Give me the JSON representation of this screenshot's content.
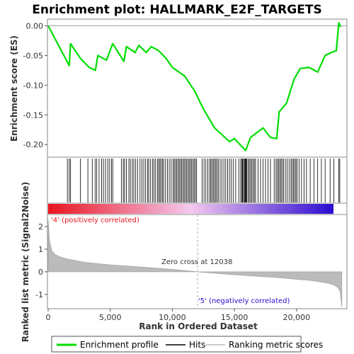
{
  "chart_data": {
    "type": "line",
    "title": "Enrichment plot: HALLMARK_E2F_TARGETS",
    "xlabel": "Rank in Ordered Dataset",
    "xlim": [
      0,
      24000
    ],
    "x_ticks": [
      0,
      5000,
      10000,
      15000,
      20000
    ],
    "x_tick_labels": [
      "0",
      "5,000",
      "10,000",
      "15,000",
      "20,000"
    ],
    "top_panel": {
      "ylabel": "Enrichment score (ES)",
      "ylim": [
        -0.22,
        0.01
      ],
      "y_ticks": [
        0.0,
        -0.05,
        -0.1,
        -0.15,
        -0.2
      ],
      "y_tick_labels": [
        "0.00",
        "-0.05",
        "-0.10",
        "-0.15",
        "-0.20"
      ],
      "grid": false,
      "series": [
        {
          "name": "Enrichment profile",
          "color": "#00dd00",
          "x": [
            0,
            1700,
            1800,
            2600,
            3300,
            3800,
            4000,
            4700,
            5200,
            6100,
            6300,
            7000,
            7300,
            7900,
            8300,
            8900,
            9500,
            10000,
            11000,
            11800,
            12500,
            13400,
            14600,
            15000,
            15900,
            16300,
            16800,
            17300,
            17900,
            18400,
            18600,
            19200,
            19800,
            20300,
            21000,
            21700,
            22300,
            22800,
            23200,
            23400,
            23550
          ],
          "values": [
            0.0,
            -0.067,
            -0.03,
            -0.055,
            -0.07,
            -0.075,
            -0.05,
            -0.058,
            -0.03,
            -0.06,
            -0.035,
            -0.045,
            -0.033,
            -0.045,
            -0.035,
            -0.042,
            -0.055,
            -0.07,
            -0.085,
            -0.11,
            -0.14,
            -0.172,
            -0.195,
            -0.19,
            -0.21,
            -0.188,
            -0.18,
            -0.172,
            -0.188,
            -0.19,
            -0.145,
            -0.13,
            -0.09,
            -0.072,
            -0.07,
            -0.078,
            -0.05,
            -0.045,
            -0.042,
            0.005,
            -0.002
          ]
        }
      ]
    },
    "hits_panel": {
      "series_name": "Hits",
      "hit_ranks": [
        1550,
        1700,
        1800,
        2600,
        3200,
        3550,
        3780,
        3900,
        4100,
        4300,
        4450,
        4620,
        4800,
        4950,
        5100,
        5200,
        5900,
        6050,
        6150,
        6300,
        6500,
        6620,
        6780,
        6900,
        7050,
        7200,
        7400,
        7550,
        7700,
        7850,
        8000,
        8100,
        8250,
        8400,
        8520,
        8650,
        8800,
        8900,
        9000,
        9100,
        9200,
        9300,
        9450,
        9600,
        9750,
        9900,
        10050,
        10150,
        10250,
        10350,
        10450,
        10550,
        10650,
        10750,
        10850,
        10950,
        11050,
        11150,
        11250,
        11350,
        11450,
        11550,
        11650,
        11750,
        11850,
        11950,
        12400,
        12550,
        12700,
        12850,
        13000,
        13100,
        13200,
        13300,
        13400,
        13500,
        13600,
        13700,
        13850,
        14000,
        14150,
        14300,
        14450,
        14600,
        14750,
        14900,
        15100,
        15350,
        15500,
        15600,
        15650,
        15700,
        15800,
        15850,
        15900,
        15950,
        16000,
        16100,
        16200,
        16300,
        16400,
        16500,
        16600,
        16700,
        16900,
        17100,
        17300,
        17500,
        17700,
        17900,
        18200,
        18350,
        18450,
        18550,
        18650,
        18750,
        18850,
        18950,
        19100,
        19250,
        19400,
        19550,
        19650,
        19750,
        19850,
        19950,
        20050,
        20200,
        20400,
        20600,
        20800,
        21100,
        21400,
        21700,
        22000,
        22300,
        22700,
        23000,
        23400,
        23480
      ]
    },
    "ranking_gradient": {
      "start_color": "#e8141e",
      "middle_color": "#f5c9f0",
      "end_color": "#2a0bd0"
    },
    "bottom_panel": {
      "series_name": "Ranking metric scores",
      "ylabel": "Ranked list metric (Signal2Noise)",
      "ylim": [
        -1.6,
        2.5
      ],
      "y_ticks": [
        2,
        1,
        0,
        -1
      ],
      "y_tick_labels": [
        "2",
        "1",
        "0",
        "-1"
      ],
      "x": [
        0,
        100,
        300,
        600,
        1000,
        1500,
        2000,
        3000,
        4000,
        5000,
        6000,
        8000,
        10000,
        12038,
        14000,
        16000,
        18000,
        19000,
        20000,
        21000,
        22000,
        22500,
        23000,
        23300,
        23500,
        23650
      ],
      "values": [
        2.3,
        1.4,
        0.92,
        0.75,
        0.65,
        0.57,
        0.52,
        0.42,
        0.36,
        0.31,
        0.27,
        0.19,
        0.11,
        0.0,
        -0.09,
        -0.17,
        -0.24,
        -0.28,
        -0.33,
        -0.38,
        -0.45,
        -0.5,
        -0.58,
        -0.68,
        -0.85,
        -1.55
      ],
      "annotations": {
        "positive": "'4' (positively correlated)",
        "negative": "'5' (negatively correlated)",
        "zero_cross": "Zero cross at 12038"
      },
      "zero_cross_rank": 12038,
      "positive_color": "#e8141e",
      "negative_color": "#2a0bd0"
    },
    "legend": {
      "placement": "bottom",
      "items": [
        {
          "label": "Enrichment profile",
          "color": "#00dd00",
          "kind": "thick-line"
        },
        {
          "label": "Hits",
          "color": "#000000",
          "kind": "line"
        },
        {
          "label": "Ranking metric scores",
          "color": "#bbbbbb",
          "kind": "line"
        }
      ]
    }
  }
}
